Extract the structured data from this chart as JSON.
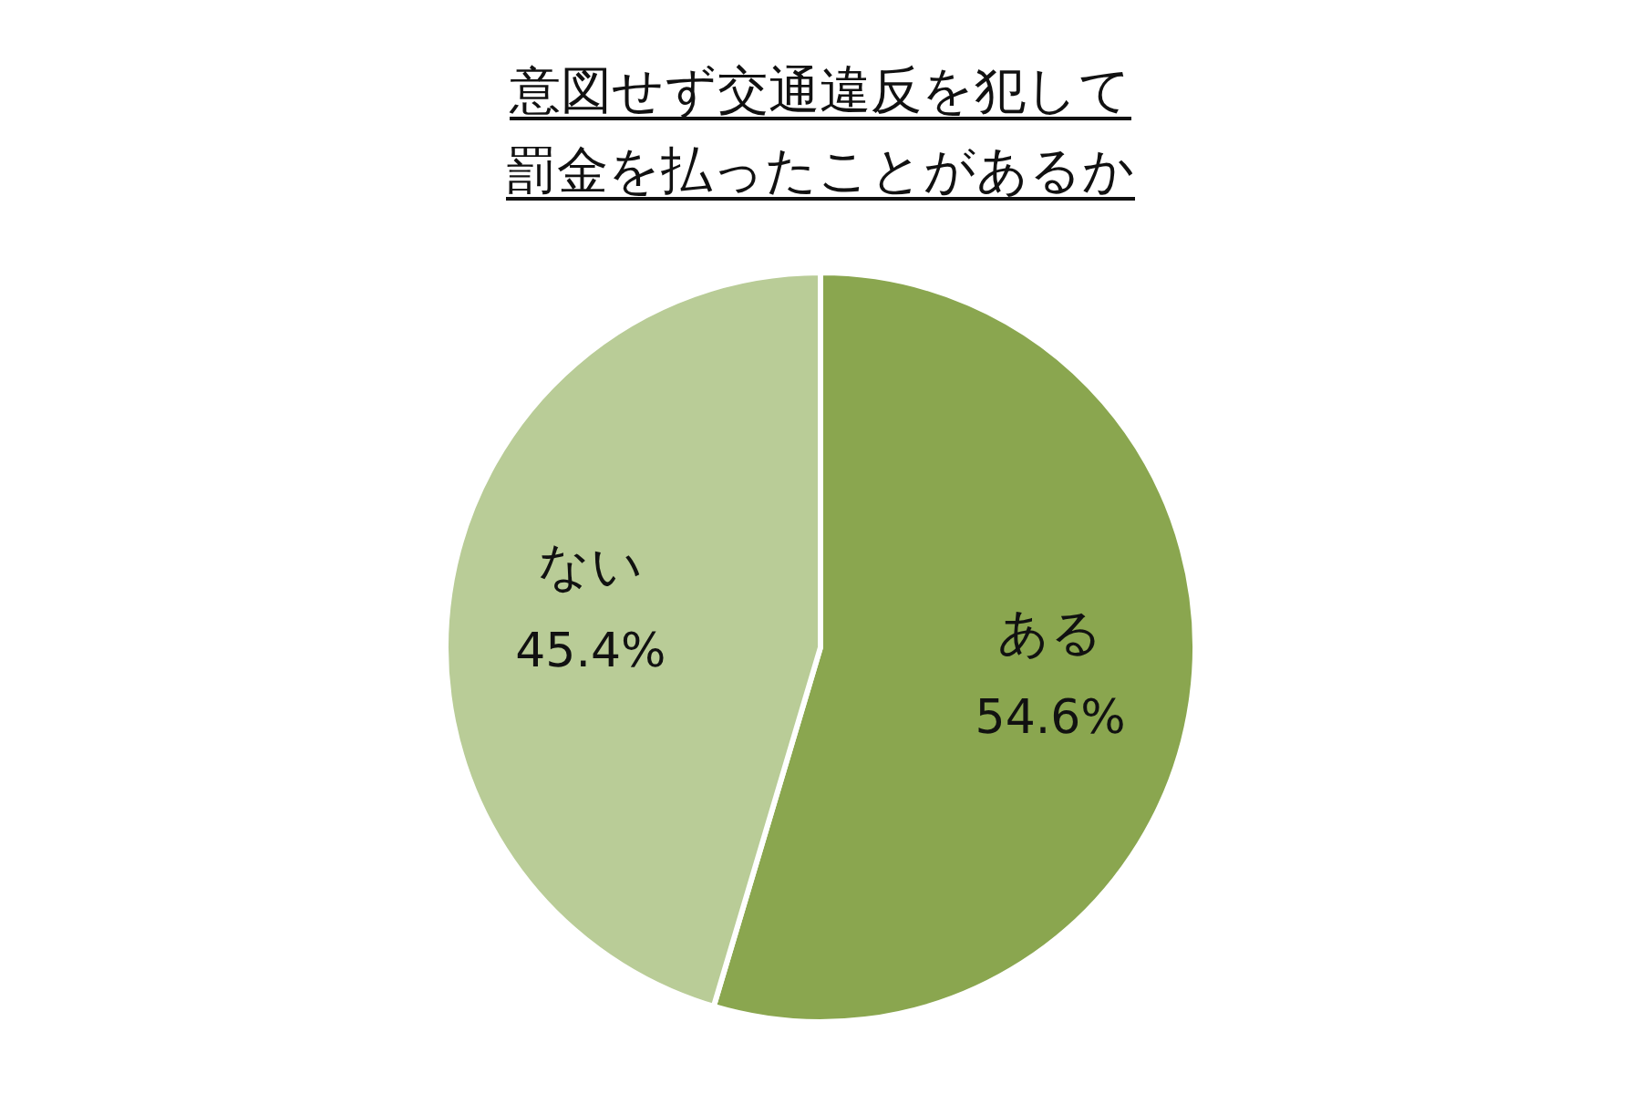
{
  "chart_data": {
    "type": "pie",
    "title": "意図せず交通違反を犯して罰金を払ったことがあるか",
    "categories": [
      "ある",
      "ない"
    ],
    "values": [
      54.6,
      45.4
    ],
    "value_labels": [
      "54.6%",
      "45.4%"
    ],
    "colors": [
      "#8aa64f",
      "#b9cc97"
    ],
    "legend": false
  }
}
